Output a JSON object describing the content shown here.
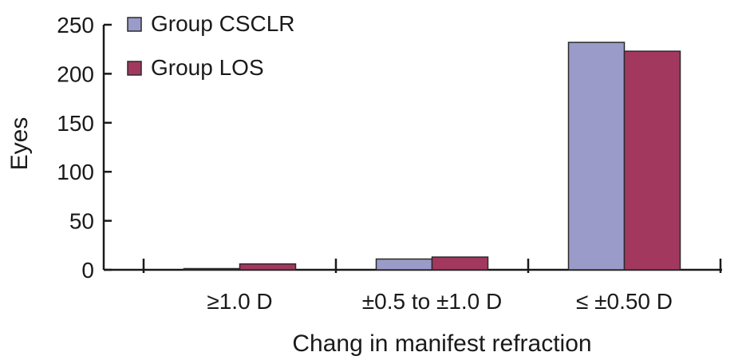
{
  "chart_data": {
    "type": "bar",
    "categories": [
      "≥1.0 D",
      "±0.5 to ±1.0 D",
      "≤  ±0.50 D"
    ],
    "series": [
      {
        "name": "Group CSCLR",
        "values": [
          1,
          11,
          232
        ],
        "color": "#9b9bc9"
      },
      {
        "name": "Group LOS",
        "values": [
          6,
          13,
          223
        ],
        "color": "#a3385f"
      }
    ],
    "xlabel": "Chang in manifest refraction",
    "ylabel": "Eyes",
    "ylim": [
      0,
      250
    ],
    "yticks": [
      0,
      50,
      100,
      150,
      200,
      250
    ],
    "grid": false,
    "legend_position": "top-left"
  }
}
